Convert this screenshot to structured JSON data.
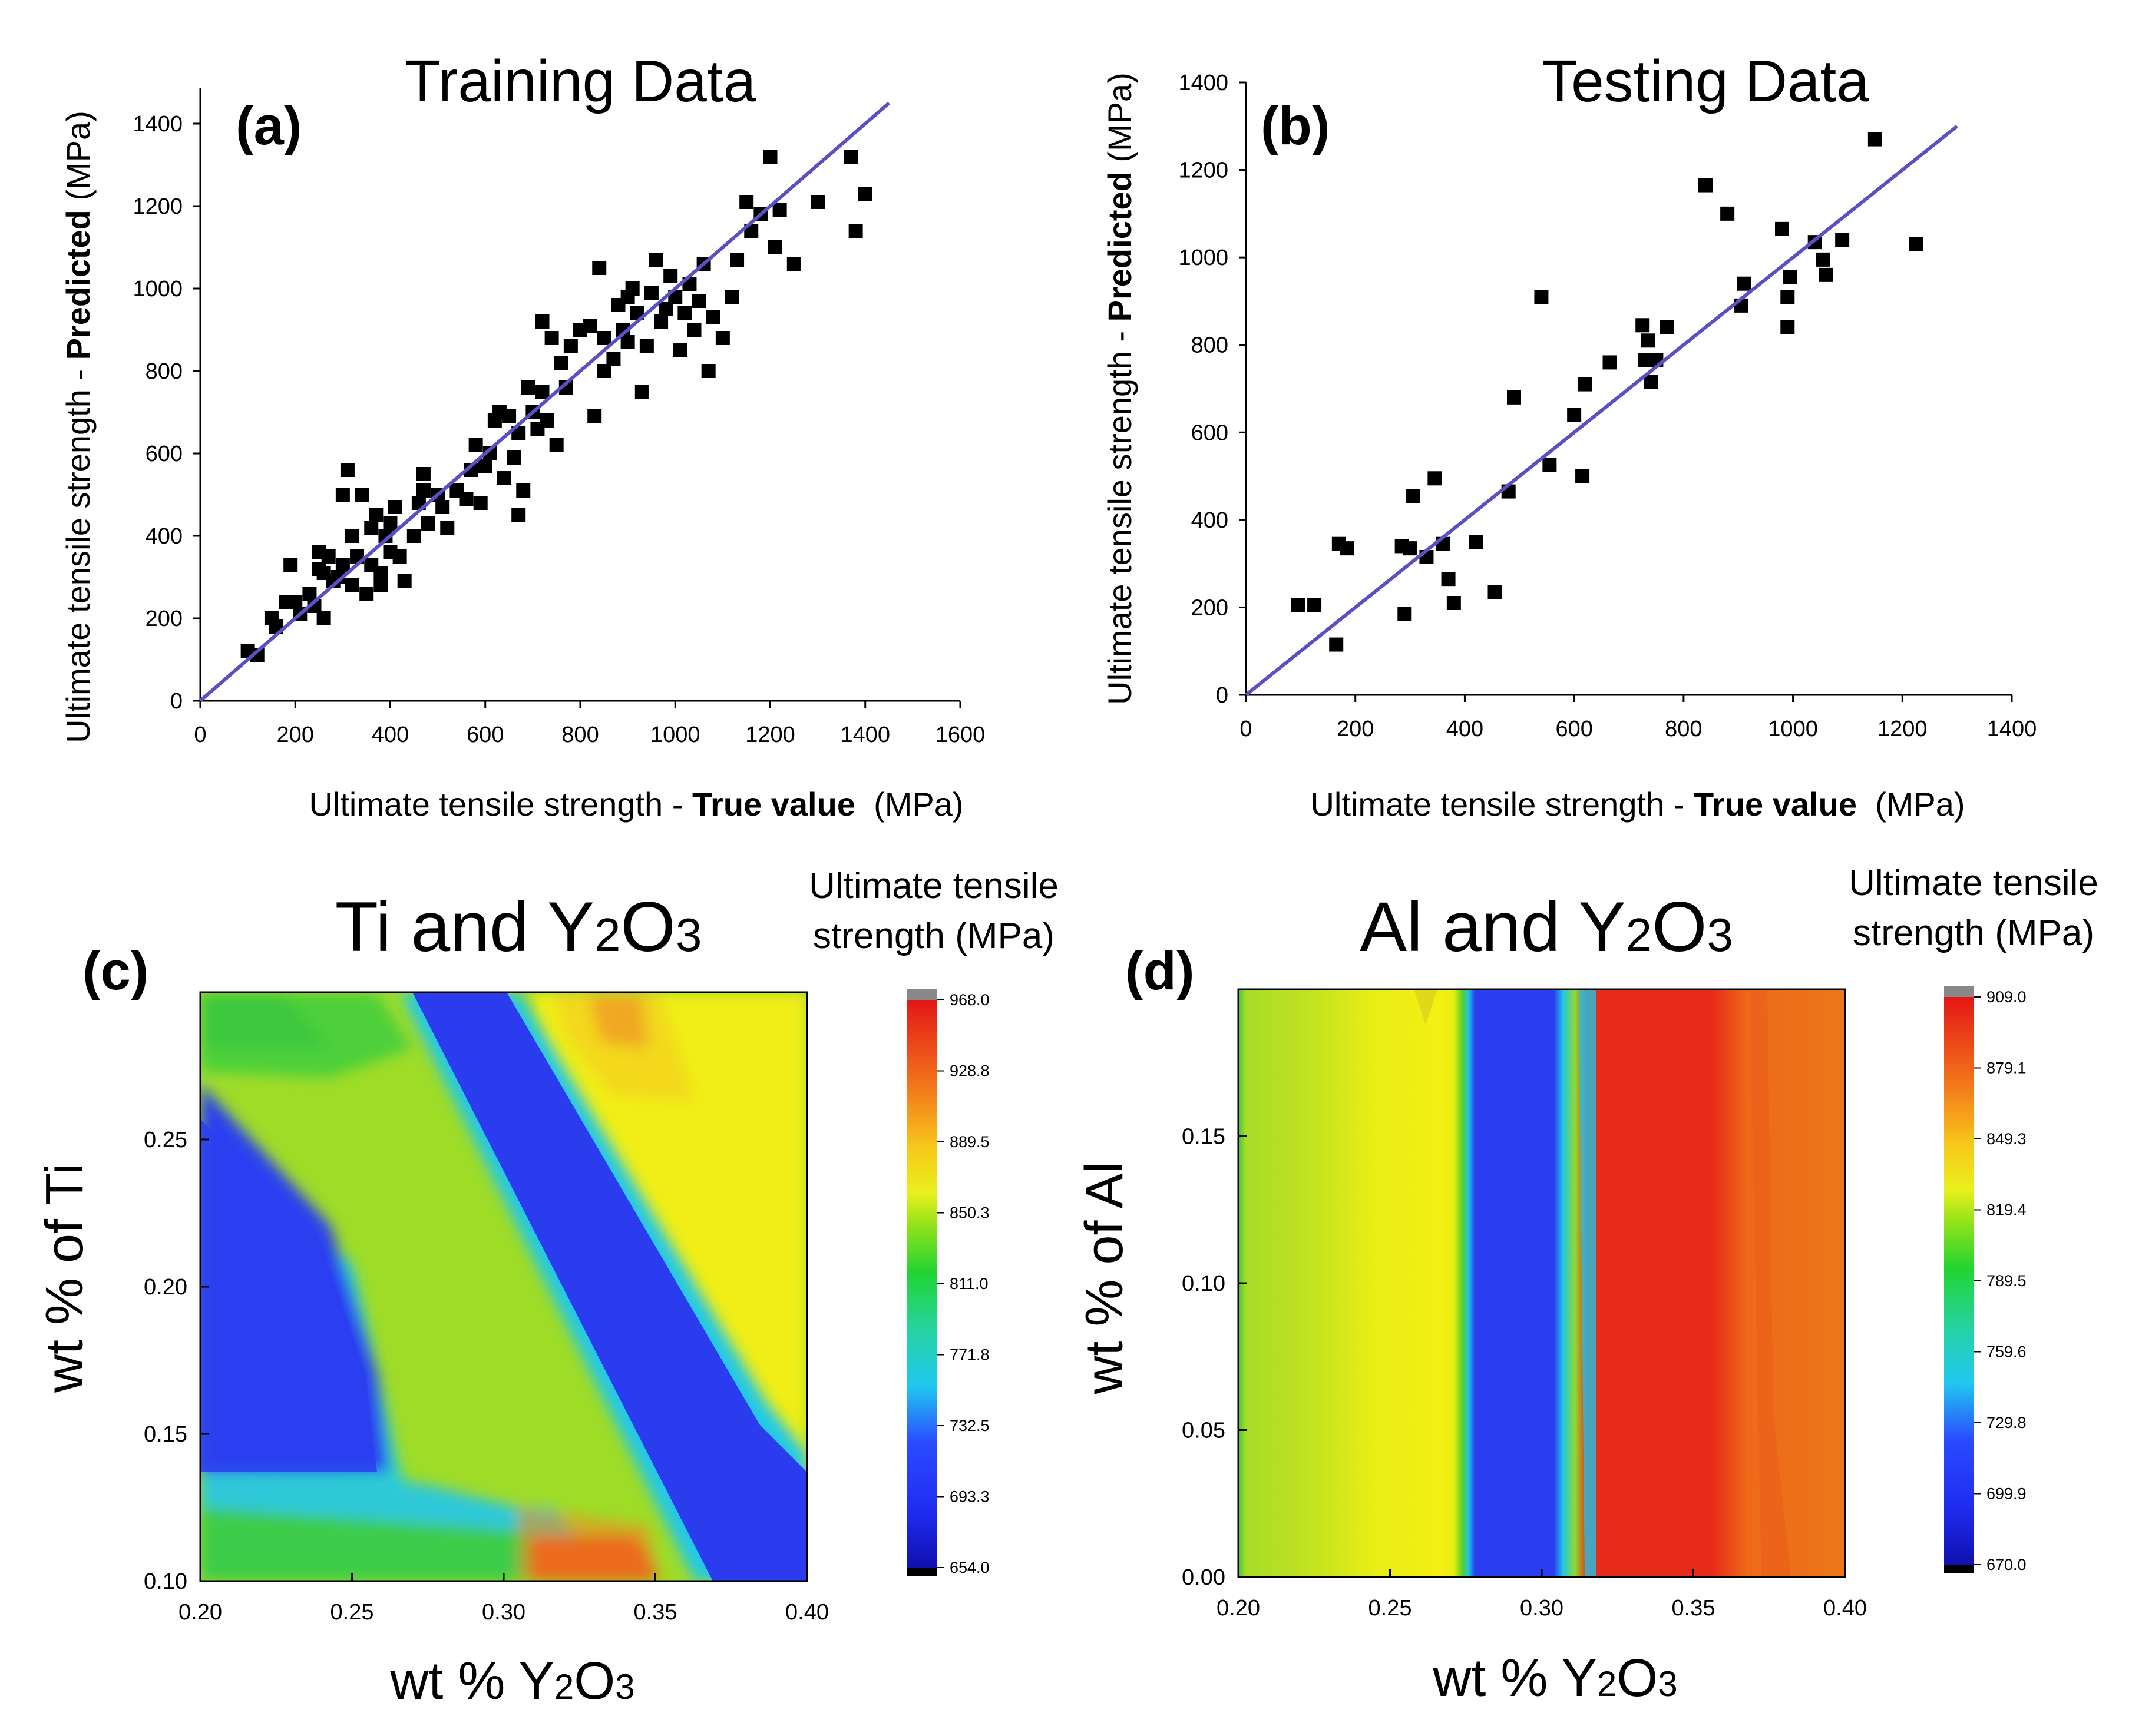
{
  "chart_data": [
    {
      "panel": "(a)",
      "type": "scatter",
      "title": "Training Data",
      "xlabel": {
        "pre": "Ultimate tensile strength - ",
        "bold": "True value",
        "post": "  (MPa)"
      },
      "ylabel": {
        "pre": "Ultimate tensile strength - ",
        "bold": "Predicted",
        "post": " (MPa)"
      },
      "xlim": [
        0,
        1600
      ],
      "ylim": [
        0,
        1500
      ],
      "xticks": [
        0,
        200,
        400,
        600,
        800,
        1000,
        1200,
        1400,
        1600
      ],
      "yticks": [
        0,
        200,
        400,
        600,
        800,
        1000,
        1200,
        1400
      ],
      "fit_line": {
        "x": [
          0,
          1450
        ],
        "y": [
          0,
          1450
        ],
        "color": "#5a4fc4"
      },
      "marker_color": "#000000",
      "points": [
        [
          100,
          120
        ],
        [
          120,
          110
        ],
        [
          150,
          200
        ],
        [
          160,
          180
        ],
        [
          180,
          240
        ],
        [
          190,
          330
        ],
        [
          200,
          240
        ],
        [
          210,
          210
        ],
        [
          230,
          260
        ],
        [
          240,
          230
        ],
        [
          250,
          320
        ],
        [
          260,
          310
        ],
        [
          250,
          360
        ],
        [
          260,
          200
        ],
        [
          270,
          350
        ],
        [
          280,
          290
        ],
        [
          290,
          300
        ],
        [
          300,
          500
        ],
        [
          310,
          560
        ],
        [
          300,
          330
        ],
        [
          320,
          280
        ],
        [
          320,
          400
        ],
        [
          330,
          350
        ],
        [
          340,
          500
        ],
        [
          350,
          260
        ],
        [
          360,
          330
        ],
        [
          360,
          420
        ],
        [
          370,
          450
        ],
        [
          380,
          310
        ],
        [
          380,
          280
        ],
        [
          390,
          400
        ],
        [
          400,
          360
        ],
        [
          400,
          430
        ],
        [
          410,
          470
        ],
        [
          420,
          350
        ],
        [
          430,
          290
        ],
        [
          450,
          400
        ],
        [
          460,
          480
        ],
        [
          470,
          510
        ],
        [
          470,
          550
        ],
        [
          480,
          430
        ],
        [
          500,
          500
        ],
        [
          510,
          470
        ],
        [
          520,
          420
        ],
        [
          540,
          510
        ],
        [
          560,
          490
        ],
        [
          570,
          560
        ],
        [
          580,
          620
        ],
        [
          590,
          480
        ],
        [
          600,
          570
        ],
        [
          610,
          600
        ],
        [
          620,
          680
        ],
        [
          630,
          700
        ],
        [
          640,
          540
        ],
        [
          650,
          690
        ],
        [
          660,
          590
        ],
        [
          670,
          650
        ],
        [
          670,
          450
        ],
        [
          680,
          510
        ],
        [
          690,
          760
        ],
        [
          700,
          700
        ],
        [
          710,
          660
        ],
        [
          720,
          920
        ],
        [
          720,
          750
        ],
        [
          730,
          680
        ],
        [
          740,
          880
        ],
        [
          750,
          620
        ],
        [
          760,
          820
        ],
        [
          770,
          760
        ],
        [
          780,
          860
        ],
        [
          800,
          900
        ],
        [
          820,
          910
        ],
        [
          830,
          690
        ],
        [
          840,
          1050
        ],
        [
          850,
          880
        ],
        [
          850,
          800
        ],
        [
          870,
          830
        ],
        [
          880,
          960
        ],
        [
          890,
          900
        ],
        [
          900,
          980
        ],
        [
          900,
          870
        ],
        [
          910,
          1000
        ],
        [
          920,
          940
        ],
        [
          930,
          750
        ],
        [
          940,
          860
        ],
        [
          950,
          990
        ],
        [
          960,
          1070
        ],
        [
          970,
          920
        ],
        [
          980,
          950
        ],
        [
          990,
          1030
        ],
        [
          1000,
          980
        ],
        [
          1010,
          850
        ],
        [
          1020,
          940
        ],
        [
          1030,
          1010
        ],
        [
          1040,
          900
        ],
        [
          1050,
          970
        ],
        [
          1060,
          1060
        ],
        [
          1070,
          800
        ],
        [
          1080,
          930
        ],
        [
          1100,
          880
        ],
        [
          1120,
          980
        ],
        [
          1130,
          1070
        ],
        [
          1150,
          1210
        ],
        [
          1160,
          1140
        ],
        [
          1180,
          1180
        ],
        [
          1200,
          1320
        ],
        [
          1210,
          1100
        ],
        [
          1220,
          1190
        ],
        [
          1250,
          1060
        ],
        [
          1300,
          1210
        ],
        [
          1370,
          1320
        ],
        [
          1380,
          1140
        ],
        [
          1400,
          1230
        ]
      ]
    },
    {
      "panel": "(b)",
      "type": "scatter",
      "title": "Testing Data",
      "xlabel": {
        "pre": "Ultimate tensile strength - ",
        "bold": "True value",
        "post": "  (MPa)"
      },
      "ylabel": {
        "pre": "Ultimate tensile strength - ",
        "bold": "Predicted",
        "post": " (MPa)"
      },
      "xlim": [
        0,
        1400
      ],
      "ylim": [
        0,
        1400
      ],
      "xticks": [
        0,
        200,
        400,
        600,
        800,
        1000,
        1200,
        1400
      ],
      "yticks": [
        0,
        200,
        400,
        600,
        800,
        1000,
        1200,
        1400
      ],
      "fit_line": {
        "x": [
          0,
          1300
        ],
        "y": [
          0,
          1300
        ],
        "color": "#5a4fc4"
      },
      "marker_color": "#000000",
      "points": [
        [
          95,
          205
        ],
        [
          125,
          205
        ],
        [
          165,
          115
        ],
        [
          170,
          345
        ],
        [
          185,
          335
        ],
        [
          285,
          340
        ],
        [
          290,
          185
        ],
        [
          300,
          335
        ],
        [
          305,
          455
        ],
        [
          330,
          315
        ],
        [
          345,
          495
        ],
        [
          360,
          345
        ],
        [
          370,
          265
        ],
        [
          380,
          210
        ],
        [
          420,
          350
        ],
        [
          455,
          235
        ],
        [
          480,
          465
        ],
        [
          490,
          680
        ],
        [
          540,
          910
        ],
        [
          555,
          525
        ],
        [
          600,
          640
        ],
        [
          615,
          500
        ],
        [
          620,
          710
        ],
        [
          665,
          760
        ],
        [
          725,
          845
        ],
        [
          730,
          765
        ],
        [
          735,
          810
        ],
        [
          740,
          715
        ],
        [
          750,
          765
        ],
        [
          770,
          840
        ],
        [
          840,
          1165
        ],
        [
          880,
          1100
        ],
        [
          905,
          890
        ],
        [
          910,
          940
        ],
        [
          980,
          1065
        ],
        [
          990,
          910
        ],
        [
          995,
          955
        ],
        [
          990,
          840
        ],
        [
          1040,
          1035
        ],
        [
          1055,
          995
        ],
        [
          1060,
          960
        ],
        [
          1090,
          1040
        ],
        [
          1150,
          1270
        ],
        [
          1225,
          1030
        ]
      ]
    },
    {
      "panel": "(c)",
      "type": "heatmap",
      "title": "Ti and Y2O3",
      "title_parts": {
        "a": "Ti and Y",
        "sub": "2",
        "b": "O",
        "sub2": "3"
      },
      "xlabel_parts": {
        "a": "wt % Y",
        "sub": "2",
        "b": "O",
        "sub2": "3"
      },
      "ylabel": "wt % of Ti",
      "xlim": [
        0.2,
        0.4
      ],
      "ylim": [
        0.1,
        0.3
      ],
      "xticks": [
        "0.20",
        "0.25",
        "0.30",
        "0.35",
        "0.40"
      ],
      "yticks": [
        "0.10",
        "0.15",
        "0.20",
        "0.25"
      ],
      "colorbar_title": [
        "Ultimate tensile",
        "strength (MPa)"
      ],
      "colorbar_ticks": [
        "968.0",
        "928.8",
        "889.5",
        "850.3",
        "811.0",
        "771.8",
        "732.5",
        "693.3",
        "654.0"
      ],
      "range": [
        654.0,
        968.0
      ]
    },
    {
      "panel": "(d)",
      "type": "heatmap",
      "title": "Al and Y2O3",
      "title_parts": {
        "a": "Al and Y",
        "sub": "2",
        "b": "O",
        "sub2": "3"
      },
      "xlabel_parts": {
        "a": "wt % Y",
        "sub": "2",
        "b": "O",
        "sub2": "3"
      },
      "ylabel": "wt % of Al",
      "xlim": [
        0.2,
        0.4
      ],
      "ylim": [
        0.0,
        0.2
      ],
      "xticks": [
        "0.20",
        "0.25",
        "0.30",
        "0.35",
        "0.40"
      ],
      "yticks": [
        "0.00",
        "0.05",
        "0.10",
        "0.15"
      ],
      "colorbar_title": [
        "Ultimate tensile",
        "strength (MPa)"
      ],
      "colorbar_ticks": [
        "909.0",
        "879.1",
        "849.3",
        "819.4",
        "789.5",
        "759.6",
        "729.8",
        "699.9",
        "670.0"
      ],
      "range": [
        670.0,
        909.0
      ]
    }
  ]
}
